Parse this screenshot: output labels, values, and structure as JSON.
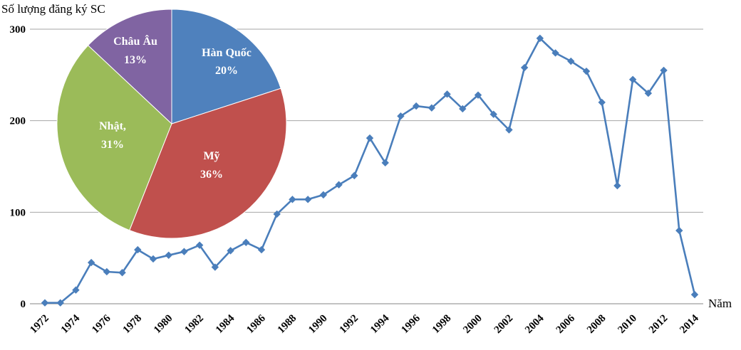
{
  "chart_data": [
    {
      "type": "line",
      "ylabel": "Số lượng đăng ký SC",
      "xlabel": "Năm",
      "ylim": [
        0,
        300
      ],
      "yticks": [
        0,
        100,
        200,
        300
      ],
      "xtick_labels": [
        "1972",
        "1974",
        "1976",
        "1978",
        "1980",
        "1982",
        "1984",
        "1986",
        "1988",
        "1990",
        "1992",
        "1994",
        "1996",
        "1998",
        "2000",
        "2002",
        "2004",
        "2006",
        "2008",
        "2010",
        "2012",
        "2014"
      ],
      "grid": true,
      "color": "#4a7ebb",
      "series": [
        {
          "x": [
            1972,
            1973,
            1974,
            1975,
            1976,
            1977,
            1978,
            1979,
            1980,
            1981,
            1982,
            1983,
            1984,
            1985,
            1986,
            1987,
            1988,
            1989,
            1990,
            1991,
            1992,
            1993,
            1994,
            1995,
            1996,
            1997,
            1998,
            1999,
            2000,
            2001,
            2002,
            2003,
            2004,
            2005,
            2006,
            2007,
            2008,
            2009,
            2010,
            2011,
            2012,
            2013,
            2014
          ],
          "values": [
            1,
            1,
            15,
            45,
            35,
            34,
            59,
            49,
            53,
            57,
            64,
            40,
            58,
            67,
            59,
            98,
            114,
            114,
            119,
            130,
            140,
            181,
            154,
            205,
            216,
            214,
            229,
            213,
            228,
            207,
            190,
            258,
            290,
            274,
            265,
            254,
            220,
            129,
            245,
            230,
            255,
            80,
            10
          ]
        }
      ]
    },
    {
      "type": "pie",
      "slices": [
        {
          "label": "Hàn Quốc",
          "pct_label": "20%",
          "value": 20,
          "color": "#4f81bd"
        },
        {
          "label": "Mỹ",
          "pct_label": "36%",
          "value": 36,
          "color": "#c0504d"
        },
        {
          "label": "Nhật,",
          "pct_label": "31%",
          "value": 31,
          "color": "#9bbb59"
        },
        {
          "label": "Châu Âu",
          "pct_label": "13%",
          "value": 13,
          "color": "#8064a2"
        }
      ]
    }
  ]
}
